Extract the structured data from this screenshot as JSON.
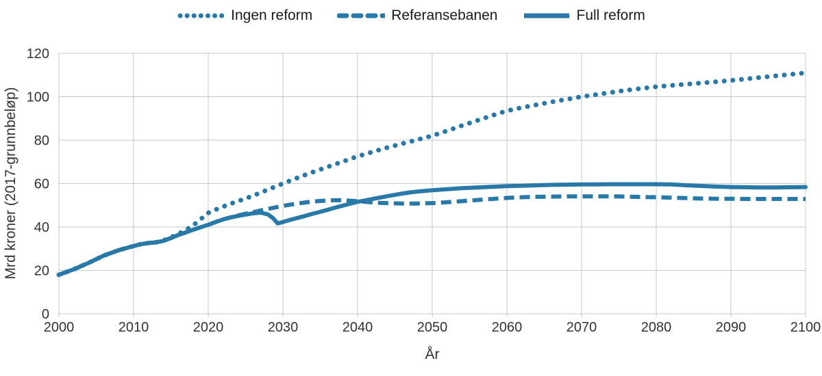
{
  "chart_data": {
    "type": "line",
    "xlabel": "År",
    "ylabel": "Mrd kroner (2017-grunnbeløp)",
    "xlim": [
      2000,
      2100
    ],
    "ylim": [
      0,
      120
    ],
    "x_ticks": [
      "2000",
      "2010",
      "2020",
      "2030",
      "2040",
      "2050",
      "2060",
      "2070",
      "2080",
      "2090",
      "2100"
    ],
    "y_ticks": [
      "0",
      "20",
      "40",
      "60",
      "80",
      "100",
      "120"
    ],
    "grid": true,
    "legend_position": "top",
    "line_color": "#2878a8",
    "grid_color": "#c6c6c6",
    "text_color": "#333333",
    "background": "#ffffff",
    "series": [
      {
        "name": "Ingen reform",
        "style": "dotted",
        "points": [
          [
            2000,
            18
          ],
          [
            2002,
            20.5
          ],
          [
            2004,
            23.5
          ],
          [
            2006,
            26.8
          ],
          [
            2008,
            29.3
          ],
          [
            2010,
            31.2
          ],
          [
            2011,
            32.1
          ],
          [
            2012,
            32.6
          ],
          [
            2013,
            32.9
          ],
          [
            2014,
            33.8
          ],
          [
            2015,
            35.2
          ],
          [
            2016,
            36.8
          ],
          [
            2017,
            38.6
          ],
          [
            2018,
            40.8
          ],
          [
            2019,
            43.6
          ],
          [
            2020,
            46.5
          ],
          [
            2021,
            48
          ],
          [
            2022,
            49.4
          ],
          [
            2023,
            50.7
          ],
          [
            2024,
            51.9
          ],
          [
            2025,
            53.1
          ],
          [
            2026,
            54.4
          ],
          [
            2027,
            55.8
          ],
          [
            2028,
            57.2
          ],
          [
            2029,
            58.6
          ],
          [
            2030,
            60
          ],
          [
            2031,
            61.4
          ],
          [
            2032,
            62.7
          ],
          [
            2033,
            64
          ],
          [
            2034,
            65.3
          ],
          [
            2035,
            66.5
          ],
          [
            2036,
            67.7
          ],
          [
            2037,
            68.9
          ],
          [
            2038,
            70.1
          ],
          [
            2039,
            71.3
          ],
          [
            2040,
            72.5
          ],
          [
            2042,
            74.6
          ],
          [
            2044,
            76.6
          ],
          [
            2046,
            78.4
          ],
          [
            2048,
            80.2
          ],
          [
            2050,
            82
          ],
          [
            2052,
            84.3
          ],
          [
            2054,
            86.7
          ],
          [
            2056,
            89
          ],
          [
            2058,
            91.3
          ],
          [
            2060,
            93.5
          ],
          [
            2062,
            95
          ],
          [
            2064,
            96.3
          ],
          [
            2066,
            97.6
          ],
          [
            2068,
            98.8
          ],
          [
            2070,
            100
          ],
          [
            2072,
            101
          ],
          [
            2074,
            102
          ],
          [
            2076,
            103
          ],
          [
            2078,
            103.8
          ],
          [
            2080,
            104.6
          ],
          [
            2082,
            105.2
          ],
          [
            2084,
            105.8
          ],
          [
            2086,
            106.3
          ],
          [
            2088,
            106.9
          ],
          [
            2090,
            107.5
          ],
          [
            2092,
            108.2
          ],
          [
            2094,
            108.9
          ],
          [
            2096,
            109.6
          ],
          [
            2098,
            110.3
          ],
          [
            2100,
            111
          ]
        ]
      },
      {
        "name": "Referansebanen",
        "style": "dashed",
        "points": [
          [
            2000,
            18
          ],
          [
            2002,
            20.5
          ],
          [
            2004,
            23.5
          ],
          [
            2006,
            26.8
          ],
          [
            2008,
            29.3
          ],
          [
            2010,
            31.2
          ],
          [
            2011,
            32.1
          ],
          [
            2012,
            32.6
          ],
          [
            2013,
            32.9
          ],
          [
            2014,
            33.6
          ],
          [
            2015,
            34.9
          ],
          [
            2016,
            36.3
          ],
          [
            2017,
            37.5
          ],
          [
            2018,
            38.7
          ],
          [
            2019,
            39.9
          ],
          [
            2020,
            41
          ],
          [
            2021,
            42.3
          ],
          [
            2022,
            43.5
          ],
          [
            2023,
            44.4
          ],
          [
            2024,
            45.3
          ],
          [
            2025,
            46.1
          ],
          [
            2026,
            46.8
          ],
          [
            2027,
            47.6
          ],
          [
            2028,
            48.3
          ],
          [
            2029,
            49
          ],
          [
            2030,
            49.7
          ],
          [
            2031,
            50.3
          ],
          [
            2032,
            50.8
          ],
          [
            2033,
            51.3
          ],
          [
            2034,
            51.7
          ],
          [
            2035,
            52
          ],
          [
            2036,
            52.2
          ],
          [
            2037,
            52.3
          ],
          [
            2038,
            52.3
          ],
          [
            2039,
            52.1
          ],
          [
            2040,
            51.9
          ],
          [
            2041,
            51.6
          ],
          [
            2042,
            51.3
          ],
          [
            2043,
            51.1
          ],
          [
            2044,
            51
          ],
          [
            2045,
            50.9
          ],
          [
            2046,
            50.8
          ],
          [
            2047,
            50.8
          ],
          [
            2048,
            50.8
          ],
          [
            2049,
            50.9
          ],
          [
            2050,
            51
          ],
          [
            2052,
            51.4
          ],
          [
            2054,
            51.9
          ],
          [
            2056,
            52.4
          ],
          [
            2058,
            52.9
          ],
          [
            2060,
            53.4
          ],
          [
            2062,
            53.7
          ],
          [
            2064,
            53.9
          ],
          [
            2066,
            54
          ],
          [
            2068,
            54.1
          ],
          [
            2070,
            54.1
          ],
          [
            2072,
            54.1
          ],
          [
            2074,
            54.1
          ],
          [
            2076,
            54
          ],
          [
            2078,
            53.8
          ],
          [
            2080,
            53.7
          ],
          [
            2082,
            53.5
          ],
          [
            2084,
            53.3
          ],
          [
            2086,
            53.1
          ],
          [
            2088,
            53
          ],
          [
            2090,
            53
          ],
          [
            2092,
            52.9
          ],
          [
            2094,
            52.9
          ],
          [
            2096,
            52.9
          ],
          [
            2098,
            52.9
          ],
          [
            2100,
            52.9
          ]
        ]
      },
      {
        "name": "Full reform",
        "style": "solid",
        "points": [
          [
            2000,
            18
          ],
          [
            2002,
            20.5
          ],
          [
            2004,
            23.5
          ],
          [
            2006,
            26.8
          ],
          [
            2008,
            29.3
          ],
          [
            2010,
            31.2
          ],
          [
            2011,
            32.1
          ],
          [
            2012,
            32.6
          ],
          [
            2013,
            32.9
          ],
          [
            2014,
            33.6
          ],
          [
            2015,
            34.9
          ],
          [
            2016,
            36.3
          ],
          [
            2017,
            37.5
          ],
          [
            2018,
            38.7
          ],
          [
            2019,
            39.9
          ],
          [
            2020,
            41
          ],
          [
            2021,
            42.3
          ],
          [
            2022,
            43.5
          ],
          [
            2023,
            44.4
          ],
          [
            2024,
            45.1
          ],
          [
            2025,
            45.7
          ],
          [
            2026,
            46.3
          ],
          [
            2027,
            46.6
          ],
          [
            2028,
            45.8
          ],
          [
            2028.7,
            44
          ],
          [
            2029.3,
            41.6
          ],
          [
            2030,
            42.3
          ],
          [
            2031,
            43.3
          ],
          [
            2032,
            44.2
          ],
          [
            2033,
            45.1
          ],
          [
            2034,
            46.1
          ],
          [
            2035,
            47
          ],
          [
            2036,
            47.9
          ],
          [
            2037,
            48.9
          ],
          [
            2038,
            49.8
          ],
          [
            2039,
            50.7
          ],
          [
            2040,
            51.6
          ],
          [
            2041,
            52.2
          ],
          [
            2042,
            52.9
          ],
          [
            2043,
            53.5
          ],
          [
            2044,
            54.2
          ],
          [
            2045,
            54.8
          ],
          [
            2046,
            55.4
          ],
          [
            2047,
            55.9
          ],
          [
            2048,
            56.3
          ],
          [
            2049,
            56.6
          ],
          [
            2050,
            56.9
          ],
          [
            2052,
            57.4
          ],
          [
            2054,
            57.9
          ],
          [
            2056,
            58.2
          ],
          [
            2058,
            58.5
          ],
          [
            2060,
            58.8
          ],
          [
            2062,
            59
          ],
          [
            2064,
            59.2
          ],
          [
            2066,
            59.4
          ],
          [
            2068,
            59.5
          ],
          [
            2070,
            59.6
          ],
          [
            2072,
            59.6
          ],
          [
            2074,
            59.7
          ],
          [
            2076,
            59.7
          ],
          [
            2078,
            59.7
          ],
          [
            2080,
            59.7
          ],
          [
            2082,
            59.6
          ],
          [
            2084,
            59.2
          ],
          [
            2086,
            58.9
          ],
          [
            2088,
            58.6
          ],
          [
            2090,
            58.4
          ],
          [
            2092,
            58.3
          ],
          [
            2094,
            58.2
          ],
          [
            2096,
            58.2
          ],
          [
            2098,
            58.3
          ],
          [
            2100,
            58.4
          ]
        ]
      }
    ]
  }
}
